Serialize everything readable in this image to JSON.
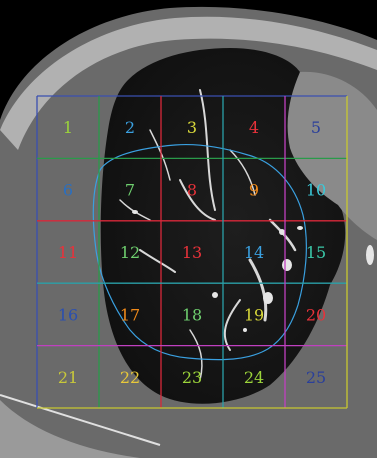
{
  "grid": {
    "cells": [
      {
        "label": "1",
        "color": "#9bd43a"
      },
      {
        "label": "2",
        "color": "#3aa0e0"
      },
      {
        "label": "3",
        "color": "#d9d93a"
      },
      {
        "label": "4",
        "color": "#e8323a"
      },
      {
        "label": "5",
        "color": "#2a3f9a"
      },
      {
        "label": "6",
        "color": "#2a6fc0"
      },
      {
        "label": "7",
        "color": "#6fcf6f"
      },
      {
        "label": "8",
        "color": "#e8323a"
      },
      {
        "label": "9",
        "color": "#f08a1a"
      },
      {
        "label": "10",
        "color": "#3ac8d8"
      },
      {
        "label": "11",
        "color": "#e8323a"
      },
      {
        "label": "12",
        "color": "#6fcf6f"
      },
      {
        "label": "13",
        "color": "#e8323a"
      },
      {
        "label": "14",
        "color": "#3aa0e0"
      },
      {
        "label": "15",
        "color": "#3ac8a8"
      },
      {
        "label": "16",
        "color": "#2a4fb0"
      },
      {
        "label": "17",
        "color": "#f08a1a"
      },
      {
        "label": "18",
        "color": "#6fcf6f"
      },
      {
        "label": "19",
        "color": "#d9d93a"
      },
      {
        "label": "20",
        "color": "#e8323a"
      },
      {
        "label": "21",
        "color": "#c8c83a"
      },
      {
        "label": "22",
        "color": "#e8c83a"
      },
      {
        "label": "23",
        "color": "#9bd43a"
      },
      {
        "label": "24",
        "color": "#9bd43a"
      },
      {
        "label": "25",
        "color": "#2a3f9a"
      }
    ],
    "row_line_colors": [
      "#3a4fb0",
      "#2a9a4a",
      "#d8283a",
      "#2aa0a8",
      "#c040c0",
      "#c8c830"
    ],
    "col_line_colors": [
      "#3a4fb0",
      "#2a9a4a",
      "#d8283a",
      "#2aa0a8",
      "#c040c0",
      "#c8c830"
    ]
  },
  "outline": {
    "color": "#3aa0e0"
  }
}
